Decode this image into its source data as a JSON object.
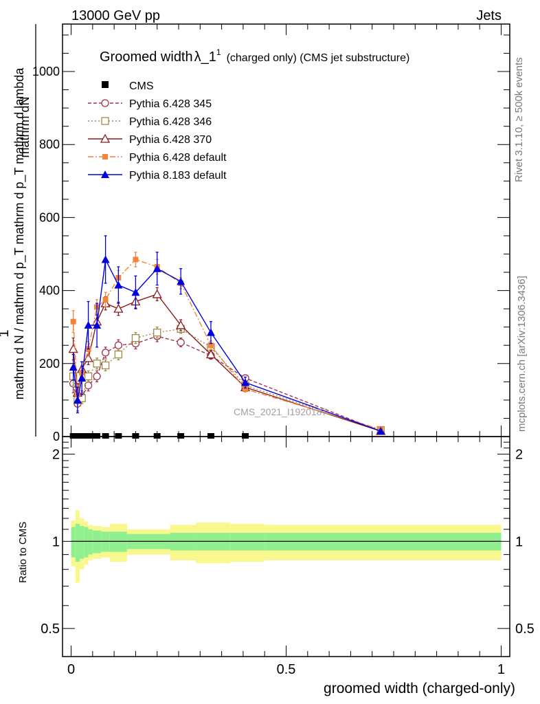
{
  "header": {
    "beam_label": "13000 GeV pp",
    "process_label": "Jets",
    "rivet_label": "Rivet 3.1.10, ≥ 500k events",
    "mcplots_label": "mcplots.cern.ch [arXiv:1306.3436]",
    "analysis_watermark": "CMS_2021_I1920187"
  },
  "chart_data": [
    {
      "id": "main",
      "type": "line",
      "title": "Groomed width",
      "title_symbol": "λ_1",
      "title_sup": "1",
      "title_detail": "(charged only) (CMS jet substructure)",
      "ylabel_numerator": "mathrm dN",
      "ylabel_denominator": "mathrm d N / mathrm d p_T mathrm d p_T mathrm d lambda",
      "ylabel_front": "1",
      "xlabel": "",
      "xlim": [
        -0.02,
        1.02
      ],
      "ylim": [
        0,
        1130
      ],
      "yticks": [
        0,
        200,
        400,
        600,
        800,
        1000
      ],
      "ytick_labels": [
        "0",
        "200",
        "400",
        "600",
        "800",
        "1000"
      ],
      "legend_position": "top-left",
      "series": [
        {
          "name": "CMS",
          "color": "#000000",
          "style": "data",
          "x": [
            0.005,
            0.015,
            0.025,
            0.035,
            0.045,
            0.06,
            0.08,
            0.11,
            0.15,
            0.2,
            0.255,
            0.325,
            0.405
          ],
          "y": [
            0,
            0,
            0,
            0,
            0,
            0,
            0,
            0,
            0,
            0,
            0,
            0,
            0
          ]
        },
        {
          "name": "Pythia 6.428 345",
          "color": "#a0344a",
          "style": "dashed",
          "marker": "circle-open",
          "x": [
            0.005,
            0.015,
            0.025,
            0.04,
            0.06,
            0.08,
            0.11,
            0.15,
            0.2,
            0.255,
            0.325,
            0.405,
            0.72
          ],
          "y": [
            145,
            90,
            110,
            140,
            165,
            230,
            250,
            255,
            275,
            258,
            222,
            160,
            15
          ],
          "err": [
            25,
            20,
            15,
            15,
            15,
            15,
            15,
            15,
            15,
            12,
            10,
            8,
            3
          ]
        },
        {
          "name": "Pythia 6.428 346",
          "color": "#a08a4a",
          "style": "dotted",
          "marker": "square-open",
          "x": [
            0.005,
            0.015,
            0.025,
            0.04,
            0.06,
            0.08,
            0.11,
            0.15,
            0.2,
            0.255,
            0.325,
            0.405,
            0.72
          ],
          "y": [
            165,
            100,
            105,
            165,
            200,
            195,
            225,
            270,
            285,
            295,
            245,
            140,
            18
          ],
          "err": [
            25,
            20,
            15,
            15,
            15,
            15,
            15,
            15,
            15,
            12,
            10,
            8,
            3
          ]
        },
        {
          "name": "Pythia 6.428 370",
          "color": "#8b1a1a",
          "style": "solid",
          "marker": "triangle-open",
          "x": [
            0.005,
            0.015,
            0.025,
            0.04,
            0.06,
            0.08,
            0.11,
            0.15,
            0.2,
            0.255,
            0.325,
            0.405,
            0.72
          ],
          "y": [
            240,
            120,
            185,
            215,
            315,
            365,
            350,
            370,
            390,
            305,
            225,
            135,
            15
          ],
          "err": [
            30,
            25,
            20,
            18,
            18,
            18,
            18,
            18,
            18,
            15,
            12,
            8,
            3
          ]
        },
        {
          "name": "Pythia 6.428 default",
          "color": "#f2843b",
          "style": "dashdot",
          "marker": "square-filled",
          "x": [
            0.005,
            0.015,
            0.025,
            0.04,
            0.06,
            0.08,
            0.11,
            0.15,
            0.2,
            0.255,
            0.325,
            0.405,
            0.72
          ],
          "y": [
            315,
            115,
            175,
            240,
            355,
            375,
            435,
            485,
            465,
            420,
            250,
            130,
            20
          ],
          "err": [
            30,
            25,
            20,
            20,
            20,
            20,
            20,
            20,
            20,
            15,
            12,
            8,
            3
          ]
        },
        {
          "name": "Pythia 8.183 default",
          "color": "#0000dd",
          "style": "solid",
          "marker": "triangle-filled",
          "x": [
            0.005,
            0.015,
            0.025,
            0.04,
            0.06,
            0.08,
            0.11,
            0.15,
            0.2,
            0.255,
            0.325,
            0.405,
            0.72
          ],
          "y": [
            190,
            100,
            160,
            305,
            305,
            485,
            415,
            395,
            460,
            425,
            285,
            148,
            15
          ],
          "err": [
            35,
            35,
            45,
            65,
            60,
            65,
            50,
            45,
            45,
            35,
            30,
            15,
            5
          ]
        }
      ]
    },
    {
      "id": "ratio",
      "type": "area",
      "ylabel": "Ratio to CMS",
      "xlabel": "groomed width (charged-only)",
      "xlim": [
        -0.02,
        1.02
      ],
      "ylim": [
        0.4,
        2.3
      ],
      "yticks": [
        0.5,
        1,
        2
      ],
      "ytick_labels": [
        "0.5",
        "1",
        "2"
      ],
      "xticks": [
        0,
        0.5,
        1
      ],
      "xtick_labels": [
        "0",
        "0.5",
        "1"
      ],
      "reference_line": 1,
      "bin_edges": [
        0,
        0.01,
        0.02,
        0.03,
        0.04,
        0.05,
        0.07,
        0.09,
        0.13,
        0.17,
        0.23,
        0.29,
        0.37,
        0.45,
        1.0
      ],
      "stat_band": [
        0.12,
        0.15,
        0.13,
        0.12,
        0.1,
        0.09,
        0.08,
        0.08,
        0.06,
        0.06,
        0.07,
        0.07,
        0.07,
        0.07
      ],
      "total_band": [
        0.18,
        0.28,
        0.2,
        0.17,
        0.14,
        0.13,
        0.12,
        0.15,
        0.1,
        0.1,
        0.14,
        0.16,
        0.15,
        0.14
      ],
      "colors": {
        "stat": "#90f090",
        "total": "#f8f88e"
      }
    }
  ]
}
